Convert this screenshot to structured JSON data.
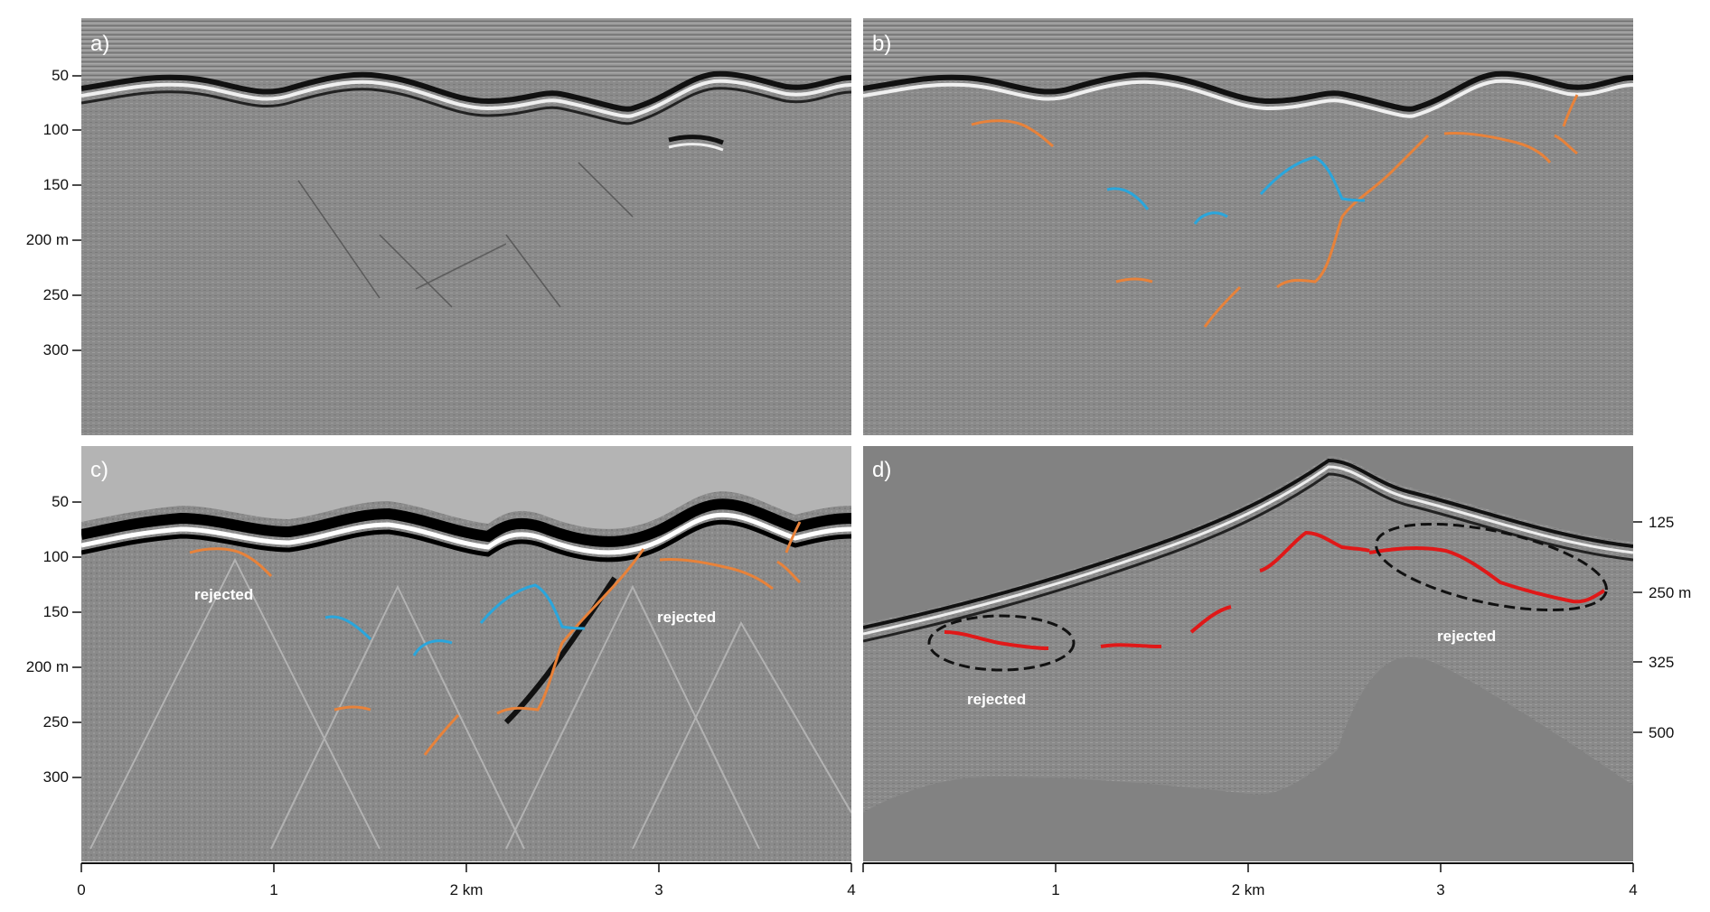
{
  "panels": {
    "a": {
      "label": "a)"
    },
    "b": {
      "label": "b)"
    },
    "c": {
      "label": "c)",
      "annotations": [
        "rejected",
        "rejected"
      ]
    },
    "d": {
      "label": "d)",
      "annotations": [
        "rejected",
        "rejected"
      ]
    }
  },
  "depth_axis_left": {
    "ticks": [
      "50",
      "100",
      "150",
      "200 m",
      "250",
      "300"
    ]
  },
  "depth_axis_right": {
    "ticks": [
      "125",
      "250 m",
      "325",
      "500"
    ]
  },
  "distance_axis": {
    "ticks": [
      "0",
      "1",
      "2 km",
      "3",
      "4"
    ]
  },
  "colors": {
    "orange_picks": "#e8823a",
    "blue_picks": "#2aa6dc",
    "red_picks": "#e01818",
    "radar_gray": "#8c8c8c",
    "panel_c_sky": "#b4b4b4",
    "panel_d_background": "#828282"
  }
}
